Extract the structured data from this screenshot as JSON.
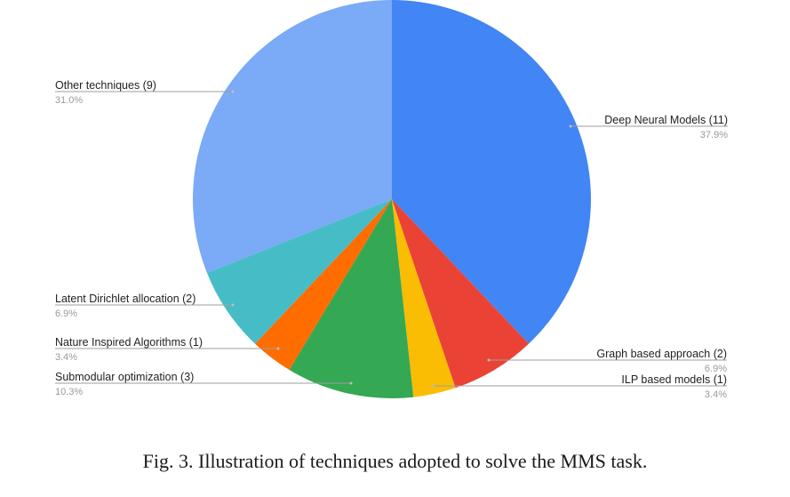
{
  "caption": "Fig. 3.  Illustration of techniques adopted to solve the MMS task.",
  "chart_data": {
    "type": "pie",
    "title": "",
    "slices": [
      {
        "label": "Deep Neural Models (11)",
        "value": 11,
        "percent": "37.9%",
        "color": "#4285f4"
      },
      {
        "label": "Graph based approach (2)",
        "value": 2,
        "percent": "6.9%",
        "color": "#ea4335"
      },
      {
        "label": "ILP based models (1)",
        "value": 1,
        "percent": "3.4%",
        "color": "#fbbc04"
      },
      {
        "label": "Submodular optimization (3)",
        "value": 3,
        "percent": "10.3%",
        "color": "#34a853"
      },
      {
        "label": "Nature Inspired Algorithms (1)",
        "value": 1,
        "percent": "3.4%",
        "color": "#ff6d01"
      },
      {
        "label": "Latent Dirichlet allocation (2)",
        "value": 2,
        "percent": "6.9%",
        "color": "#46bdc6"
      },
      {
        "label": "Other techniques (9)",
        "value": 9,
        "percent": "31.0%",
        "color": "#7baaf7"
      }
    ]
  }
}
